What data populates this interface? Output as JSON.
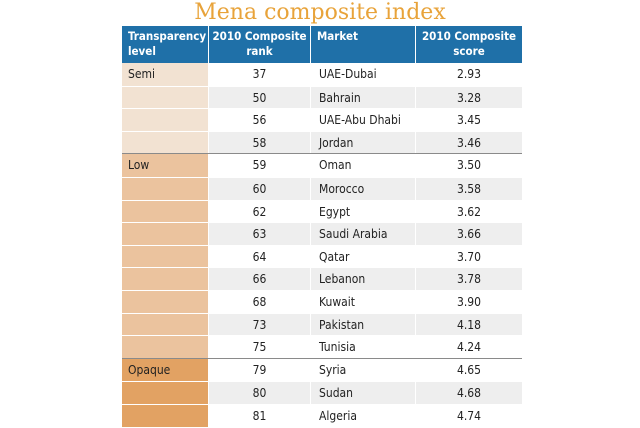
{
  "chart_data": {
    "type": "table",
    "title": "Mena composite index",
    "columns": [
      "Transparency level",
      "2010 Composite rank",
      "Market",
      "2010 Composite score"
    ],
    "header": {
      "level": "Transparency level",
      "rank": "2010 Composite rank",
      "market": "Market",
      "score": "2010 Composite score"
    },
    "groups": [
      {
        "level": "Semi",
        "color": "#f2e2d2",
        "rows": [
          {
            "rank": "37",
            "market": "UAE-Dubai",
            "score": "2.93"
          },
          {
            "rank": "50",
            "market": "Bahrain",
            "score": "3.28"
          },
          {
            "rank": "56",
            "market": "UAE-Abu Dhabi",
            "score": "3.45"
          },
          {
            "rank": "58",
            "market": "Jordan",
            "score": "3.46"
          }
        ]
      },
      {
        "level": "Low",
        "color": "#ebc39e",
        "rows": [
          {
            "rank": "59",
            "market": "Oman",
            "score": "3.50"
          },
          {
            "rank": "60",
            "market": "Morocco",
            "score": "3.58"
          },
          {
            "rank": "62",
            "market": "Egypt",
            "score": "3.62"
          },
          {
            "rank": "63",
            "market": "Saudi Arabia",
            "score": "3.66"
          },
          {
            "rank": "64",
            "market": "Qatar",
            "score": "3.70"
          },
          {
            "rank": "66",
            "market": "Lebanon",
            "score": "3.78"
          },
          {
            "rank": "68",
            "market": "Kuwait",
            "score": "3.90"
          },
          {
            "rank": "73",
            "market": "Pakistan",
            "score": "4.18"
          },
          {
            "rank": "75",
            "market": "Tunisia",
            "score": "4.24"
          }
        ]
      },
      {
        "level": "Opaque",
        "color": "#e2a263",
        "rows": [
          {
            "rank": "79",
            "market": "Syria",
            "score": "4.65"
          },
          {
            "rank": "80",
            "market": "Sudan",
            "score": "4.68"
          },
          {
            "rank": "81",
            "market": "Algeria",
            "score": "4.74"
          }
        ]
      }
    ]
  },
  "colors": {
    "title": "#e8a33a",
    "header_bg": "#1f70a8",
    "row_alt": "#eeeeee"
  }
}
